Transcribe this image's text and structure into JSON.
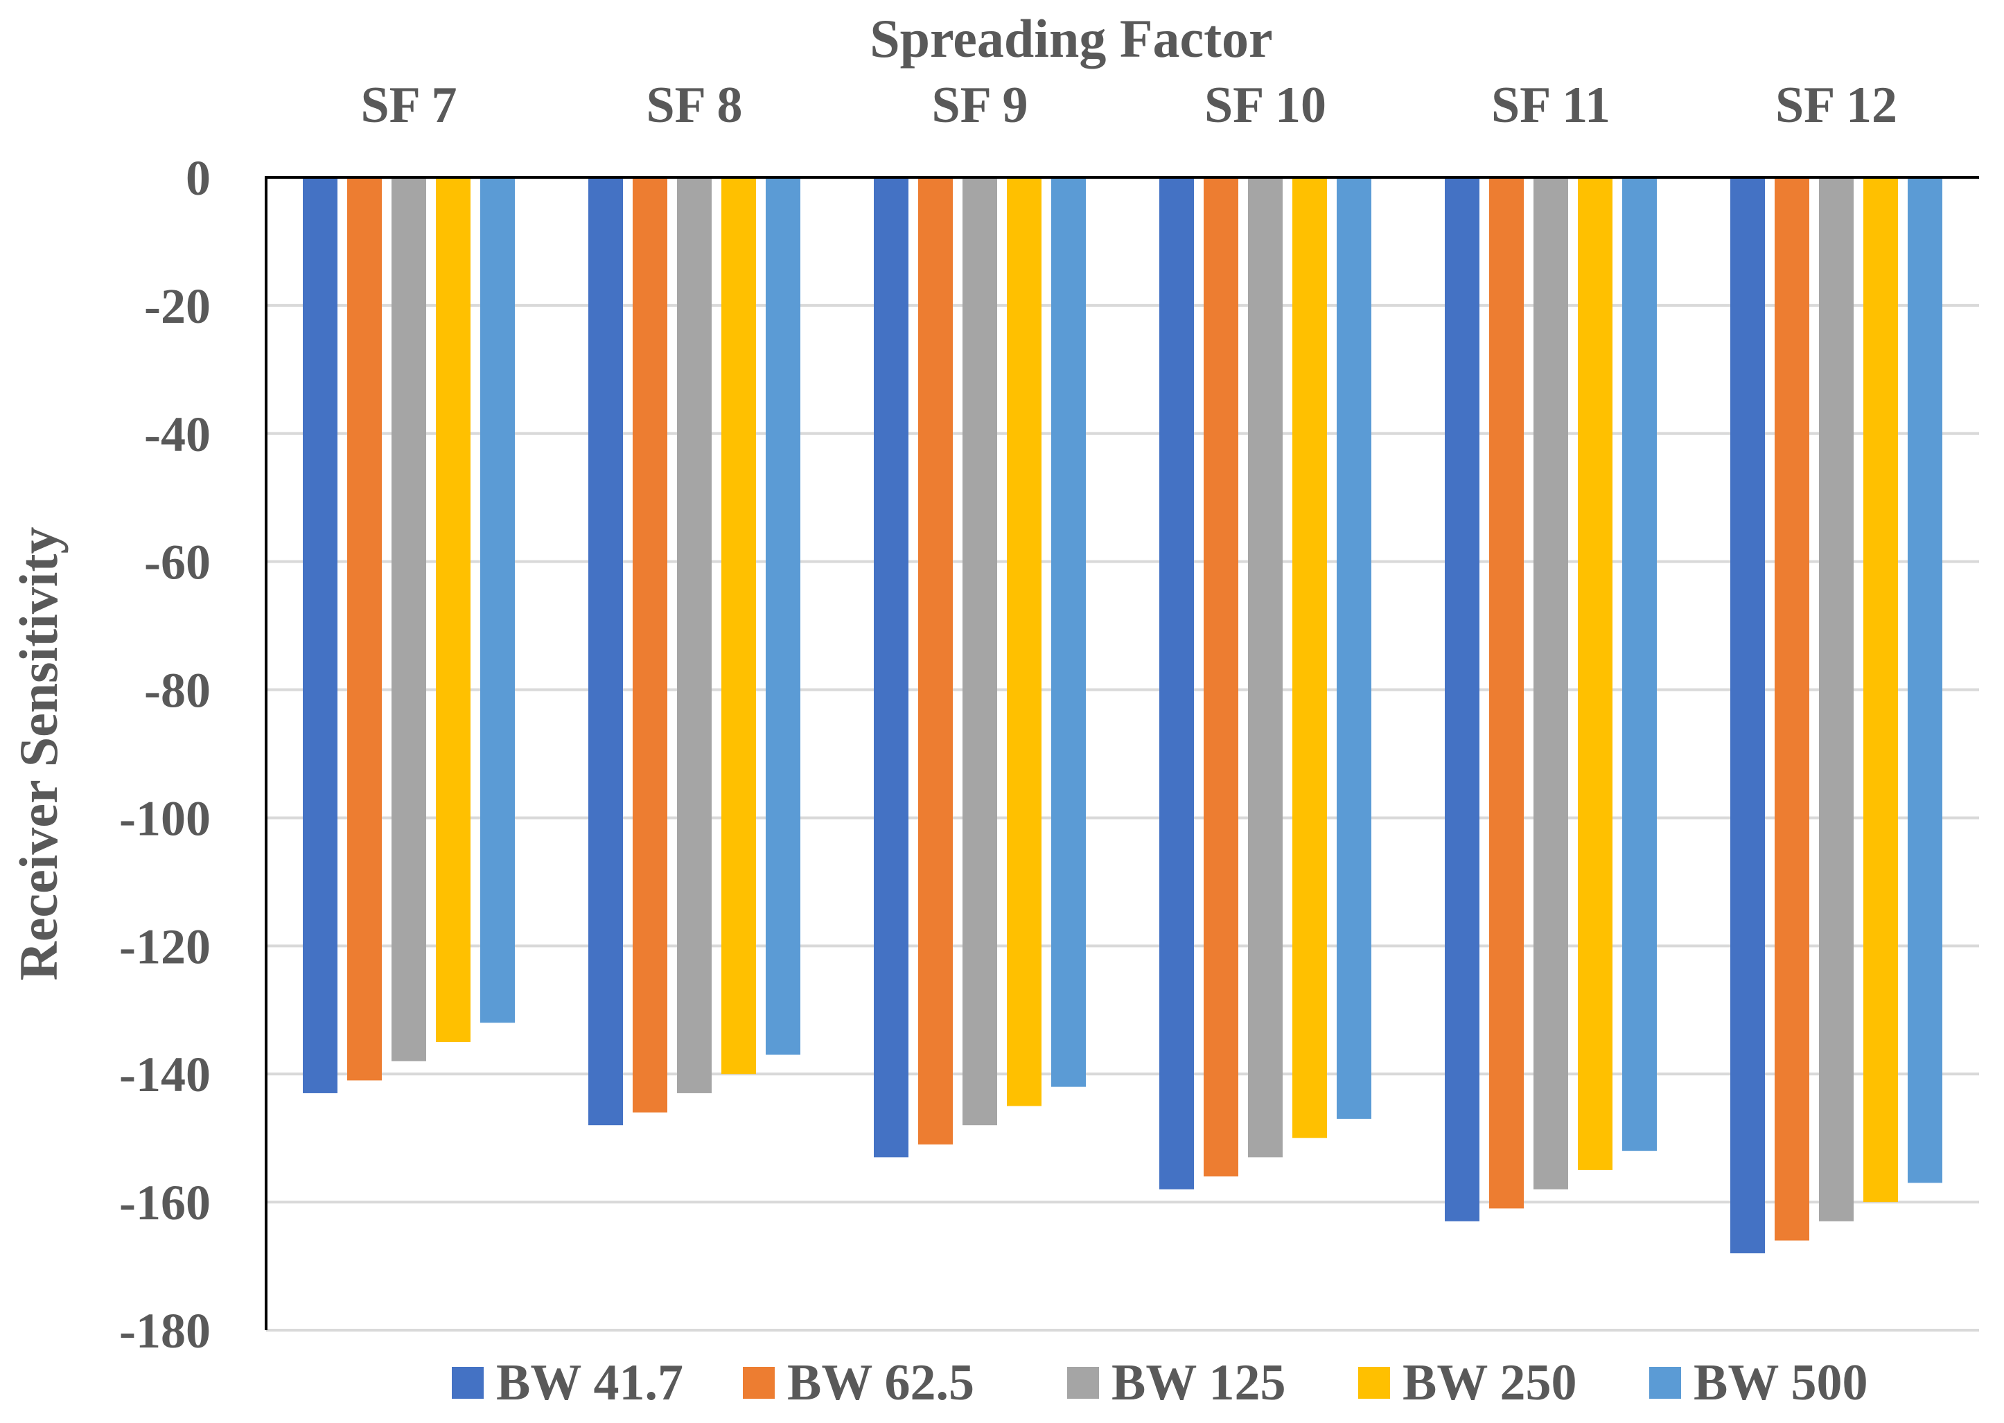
{
  "chart_data": {
    "type": "bar",
    "title": "",
    "xlabel": "Spreading Factor",
    "ylabel": "Receiver Sensitivity",
    "categories": [
      "SF 7",
      "SF 8",
      "SF 9",
      "SF 10",
      "SF 11",
      "SF 12"
    ],
    "series": [
      {
        "name": "BW 41.7",
        "color": "#4472C4",
        "values": [
          -143,
          -148,
          -153,
          -158,
          -163,
          -168
        ]
      },
      {
        "name": "BW 62.5",
        "color": "#ED7D31",
        "values": [
          -141,
          -146,
          -151,
          -156,
          -161,
          -166
        ]
      },
      {
        "name": "BW 125",
        "color": "#A5A5A5",
        "values": [
          -138,
          -143,
          -148,
          -153,
          -158,
          -163
        ]
      },
      {
        "name": "BW 250",
        "color": "#FFC000",
        "values": [
          -135,
          -140,
          -145,
          -150,
          -155,
          -160
        ]
      },
      {
        "name": "BW 500",
        "color": "#5B9BD5",
        "values": [
          -132,
          -137,
          -142,
          -147,
          -152,
          -157
        ]
      }
    ],
    "ylim": [
      -180,
      0
    ],
    "yticks": [
      0,
      -20,
      -40,
      -60,
      -80,
      -100,
      -120,
      -140,
      -160,
      -180
    ],
    "x_axis_position": "top",
    "grid": true,
    "legend": "bottom"
  }
}
